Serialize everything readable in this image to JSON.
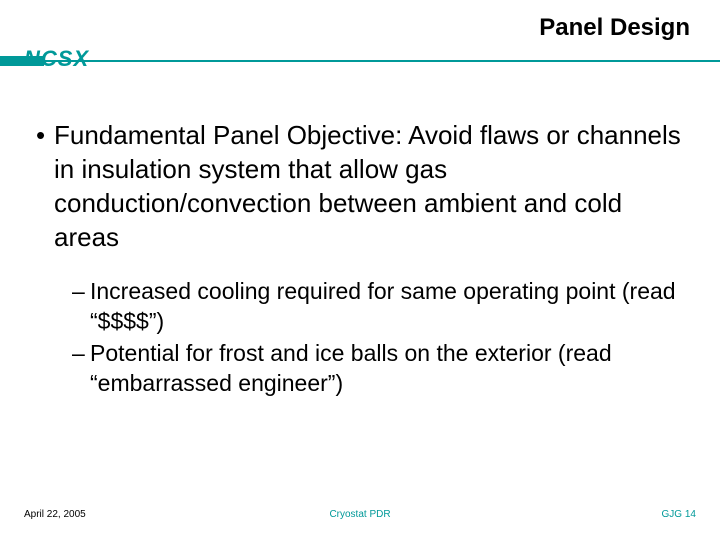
{
  "title": {
    "text": "Panel Design",
    "fontsize": 24,
    "color": "#000000"
  },
  "logo": {
    "text": "NCSX",
    "fontsize": 22,
    "color": "#009999"
  },
  "rule": {
    "bar_color": "#009999",
    "line_color": "#009999"
  },
  "bullet": {
    "marker": "•",
    "text": "Fundamental Panel Objective: Avoid flaws or channels in insulation system that allow gas conduction/convection between ambient and cold areas",
    "fontsize": 26,
    "color": "#000000"
  },
  "subs": [
    {
      "marker": "–",
      "text": "Increased cooling required for same operating point (read “$$$$”)",
      "fontsize": 23,
      "color": "#000000"
    },
    {
      "marker": "–",
      "text": "Potential for frost and ice balls on the exterior (read “embarrassed engineer”)",
      "fontsize": 23,
      "color": "#000000"
    }
  ],
  "footer": {
    "left": {
      "text": "April 22, 2005",
      "fontsize": 10,
      "color": "#000000"
    },
    "center": {
      "text": "Cryostat PDR",
      "fontsize": 10,
      "color": "#009999"
    },
    "right": {
      "text": "GJG  14",
      "fontsize": 10,
      "color": "#009999"
    }
  },
  "background_color": "#ffffff"
}
